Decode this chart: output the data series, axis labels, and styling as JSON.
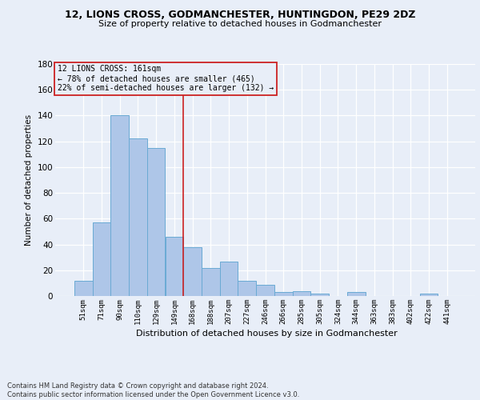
{
  "title_line1": "12, LIONS CROSS, GODMANCHESTER, HUNTINGDON, PE29 2DZ",
  "title_line2": "Size of property relative to detached houses in Godmanchester",
  "xlabel": "Distribution of detached houses by size in Godmanchester",
  "ylabel": "Number of detached properties",
  "categories": [
    "51sqm",
    "71sqm",
    "90sqm",
    "110sqm",
    "129sqm",
    "149sqm",
    "168sqm",
    "188sqm",
    "207sqm",
    "227sqm",
    "246sqm",
    "266sqm",
    "285sqm",
    "305sqm",
    "324sqm",
    "344sqm",
    "363sqm",
    "383sqm",
    "402sqm",
    "422sqm",
    "441sqm"
  ],
  "values": [
    12,
    57,
    140,
    122,
    115,
    46,
    38,
    22,
    27,
    12,
    9,
    3,
    4,
    2,
    0,
    3,
    0,
    0,
    0,
    2,
    0
  ],
  "bar_color": "#aec6e8",
  "bar_edge_color": "#6aaad4",
  "highlight_color": "#cc2222",
  "vline_x": 5.5,
  "ylim": [
    0,
    180
  ],
  "yticks": [
    0,
    20,
    40,
    60,
    80,
    100,
    120,
    140,
    160,
    180
  ],
  "annotation_line1": "12 LIONS CROSS: 161sqm",
  "annotation_line2": "← 78% of detached houses are smaller (465)",
  "annotation_line3": "22% of semi-detached houses are larger (132) →",
  "footer_line1": "Contains HM Land Registry data © Crown copyright and database right 2024.",
  "footer_line2": "Contains public sector information licensed under the Open Government Licence v3.0.",
  "bg_color": "#e8eef8"
}
